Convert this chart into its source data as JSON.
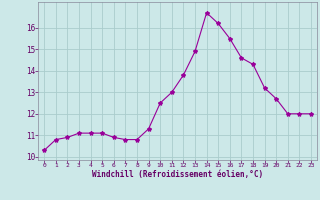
{
  "x": [
    0,
    1,
    2,
    3,
    4,
    5,
    6,
    7,
    8,
    9,
    10,
    11,
    12,
    13,
    14,
    15,
    16,
    17,
    18,
    19,
    20,
    21,
    22,
    23
  ],
  "y": [
    10.3,
    10.8,
    10.9,
    11.1,
    11.1,
    11.1,
    10.9,
    10.8,
    10.8,
    11.3,
    12.5,
    13.0,
    13.8,
    14.9,
    16.7,
    16.2,
    15.5,
    14.6,
    14.3,
    13.2,
    12.7,
    12.0,
    12.0,
    12.0
  ],
  "line_color": "#990099",
  "marker": "*",
  "marker_size": 3,
  "bg_color": "#cce8e8",
  "grid_color": "#aacccc",
  "xlabel": "Windchill (Refroidissement éolien,°C)",
  "xlabel_color": "#660066",
  "tick_color": "#660066",
  "ylim": [
    10,
    17
  ],
  "xlim": [
    -0.5,
    23.5
  ],
  "yticks": [
    10,
    11,
    12,
    13,
    14,
    15,
    16
  ],
  "xticks": [
    0,
    1,
    2,
    3,
    4,
    5,
    6,
    7,
    8,
    9,
    10,
    11,
    12,
    13,
    14,
    15,
    16,
    17,
    18,
    19,
    20,
    21,
    22,
    23
  ]
}
